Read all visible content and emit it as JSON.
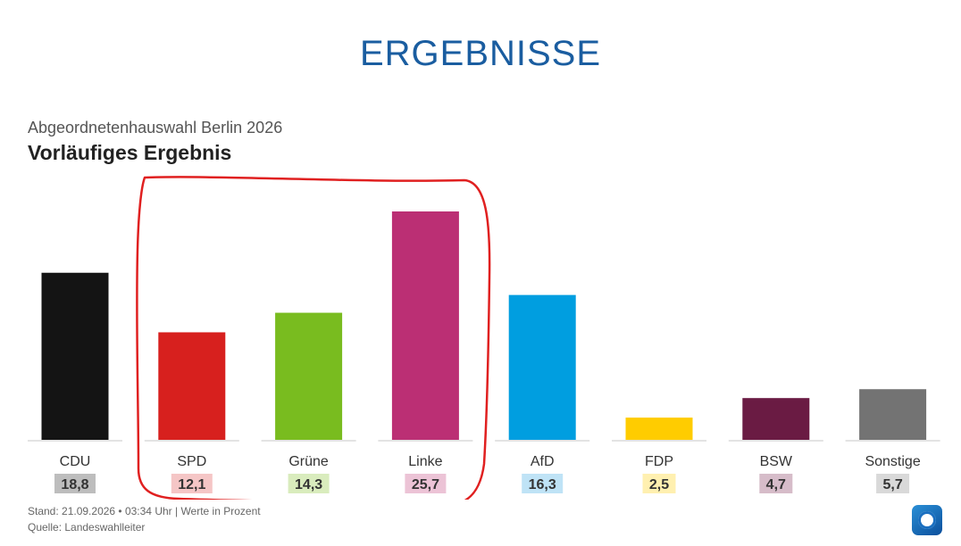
{
  "header": {
    "title": "ERGEBNISSE"
  },
  "chart_data": {
    "type": "bar",
    "subtitle": "Abgeordnetenhauswahl Berlin 2026",
    "title": "Vorläufiges Ergebnis",
    "categories": [
      "CDU",
      "SPD",
      "Grüne",
      "Linke",
      "AfD",
      "FDP",
      "BSW",
      "Sonstige"
    ],
    "values": [
      18.8,
      12.1,
      14.3,
      25.7,
      16.3,
      2.5,
      4.7,
      5.7
    ],
    "value_labels": [
      "18,8",
      "12,1",
      "14,3",
      "25,7",
      "16,3",
      "2,5",
      "4,7",
      "5,7"
    ],
    "colors": [
      "#141414",
      "#d7201e",
      "#79bc1f",
      "#bb2f74",
      "#009ee0",
      "#ffcc00",
      "#6a1b43",
      "#737373"
    ],
    "label_bg_colors": [
      "#bdbdbd",
      "#f5c6c6",
      "#d9ecbd",
      "#ecc3d6",
      "#bfe3f6",
      "#fff0b0",
      "#d6bcc9",
      "#d9d9d9"
    ],
    "ylim": [
      0,
      30
    ],
    "grid": false,
    "annotation": "red hand-drawn outline around SPD, Grüne and Linke"
  },
  "footer": {
    "stand": "Stand: 21.09.2026 • 03:34 Uhr | Werte in Prozent",
    "source": "Quelle: Landeswahlleiter"
  },
  "logo": {
    "icon": "tagesschau-logo-icon"
  }
}
